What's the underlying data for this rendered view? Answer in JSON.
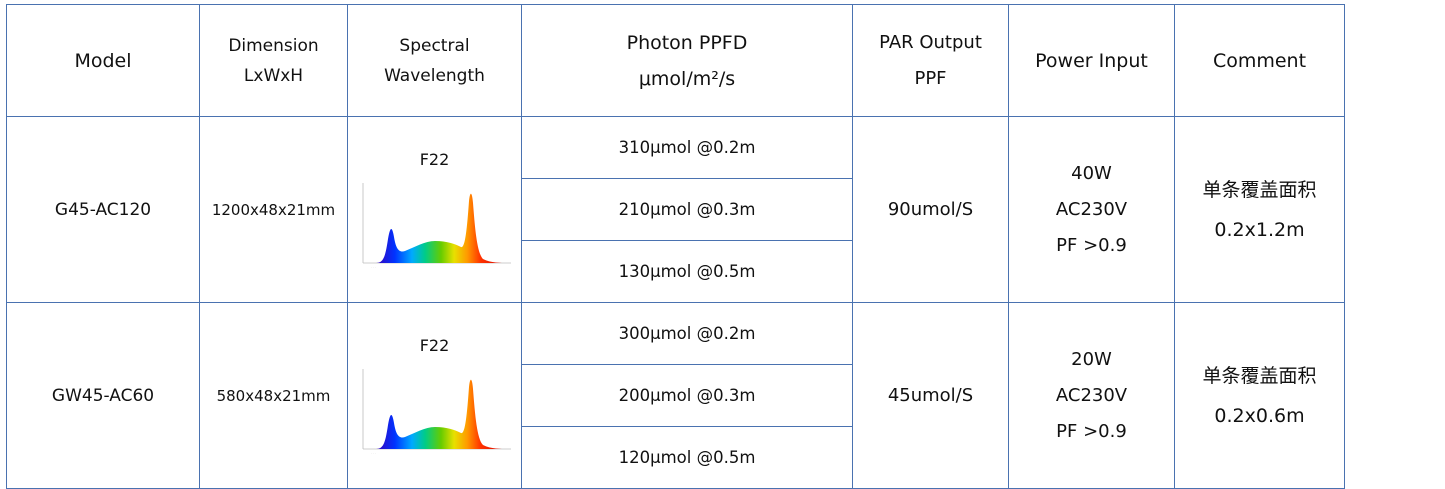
{
  "header": {
    "model": "Model",
    "dimension_l1": "Dimension",
    "dimension_l2": "LxWxH",
    "spectral_l1": "Spectral",
    "spectral_l2": "Wavelength",
    "ppfd_l1": "Photon PPFD",
    "ppfd_l2": "μmol/m²/s",
    "par_l1": "PAR Output",
    "par_l2": "PPF",
    "power": "Power Input",
    "comment": "Comment"
  },
  "rows": [
    {
      "model": "G45-AC120",
      "dimension": "1200x48x21mm",
      "spectrum_label": "F22",
      "ppfd": [
        "310μmol @0.2m",
        "210μmol @0.3m",
        "130μmol @0.5m"
      ],
      "par": "90umol/S",
      "power": [
        "40W",
        "AC230V",
        "PF >0.9"
      ],
      "comment": [
        "单条覆盖面积",
        "0.2x1.2m"
      ]
    },
    {
      "model": "GW45-AC60",
      "dimension": "580x48x21mm",
      "spectrum_label": "F22",
      "ppfd": [
        "300μmol @0.2m",
        "200μmol @0.3m",
        "120μmol @0.5m"
      ],
      "par": "45umol/S",
      "power": [
        "20W",
        "AC230V",
        "PF >0.9"
      ],
      "comment": [
        "单条覆盖面积",
        "0.2x0.6m"
      ]
    }
  ]
}
